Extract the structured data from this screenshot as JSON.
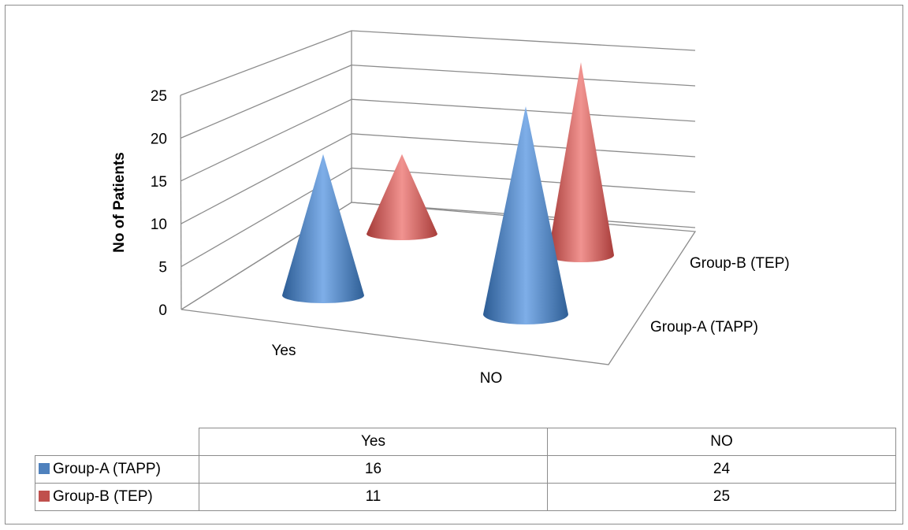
{
  "chart_data": {
    "type": "bar",
    "style": "3d-cone",
    "categories": [
      "Yes",
      "NO"
    ],
    "series": [
      {
        "name": "Group-A (TAPP)",
        "values": [
          16,
          24
        ],
        "color": "#4f81bd"
      },
      {
        "name": "Group-B (TEP)",
        "values": [
          11,
          25
        ],
        "color": "#c0504d"
      }
    ],
    "ylabel": "No of Patients",
    "ylim": [
      0,
      25
    ],
    "yticks": [
      "0",
      "5",
      "10",
      "15",
      "20",
      "25"
    ],
    "grid": true,
    "data_table": true
  }
}
